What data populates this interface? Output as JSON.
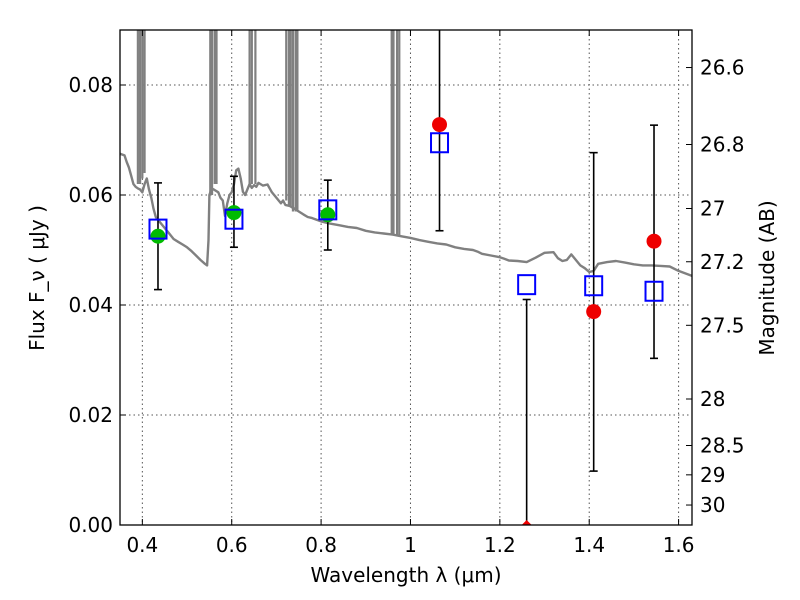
{
  "chart_data": {
    "type": "scatter",
    "title": "",
    "xlabel": "Wavelength  λ (μm)",
    "ylabel": "Flux  F_ν  ( μJy )",
    "ylabel_right": "Magnitude (AB)",
    "xlim": [
      0.35,
      1.63
    ],
    "ylim": [
      0.0,
      0.09
    ],
    "x_ticks": [
      0.4,
      0.6,
      0.8,
      1.0,
      1.2,
      1.4,
      1.6
    ],
    "x_tick_labels": [
      "0.4",
      "0.6",
      "0.8",
      "1",
      "1.2",
      "1.4",
      "1.6"
    ],
    "y_ticks": [
      0.0,
      0.02,
      0.04,
      0.06,
      0.08
    ],
    "y_tick_labels": [
      "0.00",
      "0.02",
      "0.04",
      "0.06",
      "0.08"
    ],
    "right_axis_ticks": [
      26.6,
      26.8,
      27.0,
      27.2,
      27.5,
      28.0,
      28.5,
      29.0,
      30.0
    ],
    "right_axis_tick_labels": [
      "26.6",
      "26.8",
      "27",
      "27.2",
      "27.5",
      "28",
      "28.5",
      "29",
      "30"
    ],
    "grid": true,
    "colors": {
      "model": "#808080",
      "observed_detection": "#00bb00",
      "observed_nondetection": "#ee0000",
      "model_photometry": "#0000ff",
      "errorbar": "#000000"
    },
    "series": [
      {
        "kind": "line",
        "points": [
          [
            0.35,
            0.0675
          ],
          [
            0.36,
            0.0672
          ],
          [
            0.365,
            0.066
          ],
          [
            0.37,
            0.065
          ],
          [
            0.375,
            0.0635
          ],
          [
            0.38,
            0.062
          ],
          [
            0.385,
            0.0615
          ],
          [
            0.39,
            0.0612
          ],
          [
            0.395,
            0.061
          ],
          [
            0.4,
            0.0605
          ],
          [
            0.405,
            0.062
          ],
          [
            0.41,
            0.063
          ],
          [
            0.415,
            0.061
          ],
          [
            0.42,
            0.0595
          ],
          [
            0.425,
            0.0575
          ],
          [
            0.43,
            0.056
          ],
          [
            0.44,
            0.055
          ],
          [
            0.45,
            0.054
          ],
          [
            0.46,
            0.053
          ],
          [
            0.47,
            0.052
          ],
          [
            0.48,
            0.0515
          ],
          [
            0.49,
            0.051
          ],
          [
            0.5,
            0.0505
          ],
          [
            0.51,
            0.0498
          ],
          [
            0.52,
            0.049
          ],
          [
            0.53,
            0.0482
          ],
          [
            0.54,
            0.0475
          ],
          [
            0.545,
            0.0472
          ],
          [
            0.548,
            0.0518
          ],
          [
            0.55,
            0.06
          ],
          [
            0.555,
            0.0612
          ],
          [
            0.56,
            0.061
          ],
          [
            0.57,
            0.0605
          ],
          [
            0.575,
            0.0595
          ],
          [
            0.58,
            0.059
          ],
          [
            0.585,
            0.0562
          ],
          [
            0.59,
            0.0585
          ],
          [
            0.595,
            0.06
          ],
          [
            0.6,
            0.0605
          ],
          [
            0.605,
            0.062
          ],
          [
            0.61,
            0.0645
          ],
          [
            0.615,
            0.0648
          ],
          [
            0.62,
            0.063
          ],
          [
            0.625,
            0.0606
          ],
          [
            0.63,
            0.06
          ],
          [
            0.64,
            0.062
          ],
          [
            0.645,
            0.0613
          ],
          [
            0.65,
            0.0618
          ],
          [
            0.655,
            0.0615
          ],
          [
            0.66,
            0.0622
          ],
          [
            0.67,
            0.0617
          ],
          [
            0.68,
            0.0619
          ],
          [
            0.69,
            0.0605
          ],
          [
            0.7,
            0.0595
          ],
          [
            0.71,
            0.0585
          ],
          [
            0.715,
            0.059
          ],
          [
            0.72,
            0.0582
          ],
          [
            0.73,
            0.058
          ],
          [
            0.74,
            0.0575
          ],
          [
            0.75,
            0.057
          ],
          [
            0.76,
            0.0565
          ],
          [
            0.77,
            0.056
          ],
          [
            0.78,
            0.0558
          ],
          [
            0.79,
            0.0555
          ],
          [
            0.8,
            0.0552
          ],
          [
            0.82,
            0.0548
          ],
          [
            0.84,
            0.0545
          ],
          [
            0.86,
            0.0542
          ],
          [
            0.88,
            0.054
          ],
          [
            0.9,
            0.0535
          ],
          [
            0.92,
            0.0532
          ],
          [
            0.94,
            0.053
          ],
          [
            0.96,
            0.0528
          ],
          [
            0.98,
            0.0525
          ],
          [
            1.0,
            0.0522
          ],
          [
            1.02,
            0.0518
          ],
          [
            1.04,
            0.0515
          ],
          [
            1.06,
            0.0512
          ],
          [
            1.08,
            0.051
          ],
          [
            1.1,
            0.0505
          ],
          [
            1.12,
            0.0502
          ],
          [
            1.14,
            0.05
          ],
          [
            1.15,
            0.0497
          ],
          [
            1.16,
            0.0493
          ],
          [
            1.18,
            0.049
          ],
          [
            1.2,
            0.0487
          ],
          [
            1.21,
            0.0484
          ],
          [
            1.22,
            0.0481
          ],
          [
            1.24,
            0.048
          ],
          [
            1.26,
            0.0478
          ],
          [
            1.28,
            0.0486
          ],
          [
            1.3,
            0.0495
          ],
          [
            1.32,
            0.0496
          ],
          [
            1.33,
            0.0485
          ],
          [
            1.34,
            0.048
          ],
          [
            1.35,
            0.0482
          ],
          [
            1.36,
            0.0492
          ],
          [
            1.37,
            0.0482
          ],
          [
            1.38,
            0.0472
          ],
          [
            1.39,
            0.0467
          ],
          [
            1.4,
            0.046
          ],
          [
            1.41,
            0.0462
          ],
          [
            1.42,
            0.0475
          ],
          [
            1.44,
            0.0478
          ],
          [
            1.46,
            0.048
          ],
          [
            1.48,
            0.0477
          ],
          [
            1.5,
            0.0474
          ],
          [
            1.52,
            0.0472
          ],
          [
            1.54,
            0.0472
          ],
          [
            1.56,
            0.0471
          ],
          [
            1.58,
            0.047
          ],
          [
            1.6,
            0.0462
          ],
          [
            1.63,
            0.0453
          ]
        ],
        "spikes": [
          [
            0.39,
            0.062
          ],
          [
            0.395,
            0.062
          ],
          [
            0.4,
            0.063
          ],
          [
            0.405,
            0.064
          ],
          [
            0.552,
            0.06
          ],
          [
            0.556,
            0.06
          ],
          [
            0.562,
            0.062
          ],
          [
            0.566,
            0.062
          ],
          [
            0.64,
            0.062
          ],
          [
            0.645,
            0.062
          ],
          [
            0.653,
            0.062
          ],
          [
            0.722,
            0.059
          ],
          [
            0.728,
            0.058
          ],
          [
            0.732,
            0.058
          ],
          [
            0.737,
            0.057
          ],
          [
            0.743,
            0.057
          ],
          [
            0.747,
            0.057
          ],
          [
            0.958,
            0.0528
          ],
          [
            0.962,
            0.0528
          ],
          [
            0.97,
            0.0528
          ],
          [
            0.975,
            0.0526
          ]
        ]
      },
      {
        "kind": "errorbar",
        "points": [
          [
            0.435,
            0.0525,
            0.0428,
            0.0622
          ],
          [
            0.605,
            0.0568,
            0.0505,
            0.0634
          ],
          [
            0.815,
            0.0564,
            0.05,
            0.0627
          ],
          [
            1.065,
            0.0728,
            0.0535,
            0.095
          ],
          [
            1.26,
            0.0,
            -0.01,
            0.041
          ],
          [
            1.41,
            0.0388,
            0.0098,
            0.0677
          ],
          [
            1.545,
            0.0516,
            0.0303,
            0.0727
          ]
        ]
      },
      {
        "kind": "filled-circle",
        "points": [
          [
            0.435,
            0.0525
          ],
          [
            0.605,
            0.0568
          ],
          [
            0.815,
            0.0564
          ]
        ]
      },
      {
        "kind": "filled-circle",
        "points": [
          [
            1.065,
            0.0728
          ],
          [
            1.26,
            0.0
          ],
          [
            1.41,
            0.0388
          ],
          [
            1.545,
            0.0516
          ]
        ]
      },
      {
        "kind": "open-square",
        "points": [
          [
            0.435,
            0.0538
          ],
          [
            0.605,
            0.0556
          ],
          [
            0.815,
            0.0573
          ],
          [
            1.065,
            0.0695
          ],
          [
            1.26,
            0.0437
          ],
          [
            1.41,
            0.0435
          ],
          [
            1.545,
            0.0425
          ]
        ]
      }
    ]
  }
}
